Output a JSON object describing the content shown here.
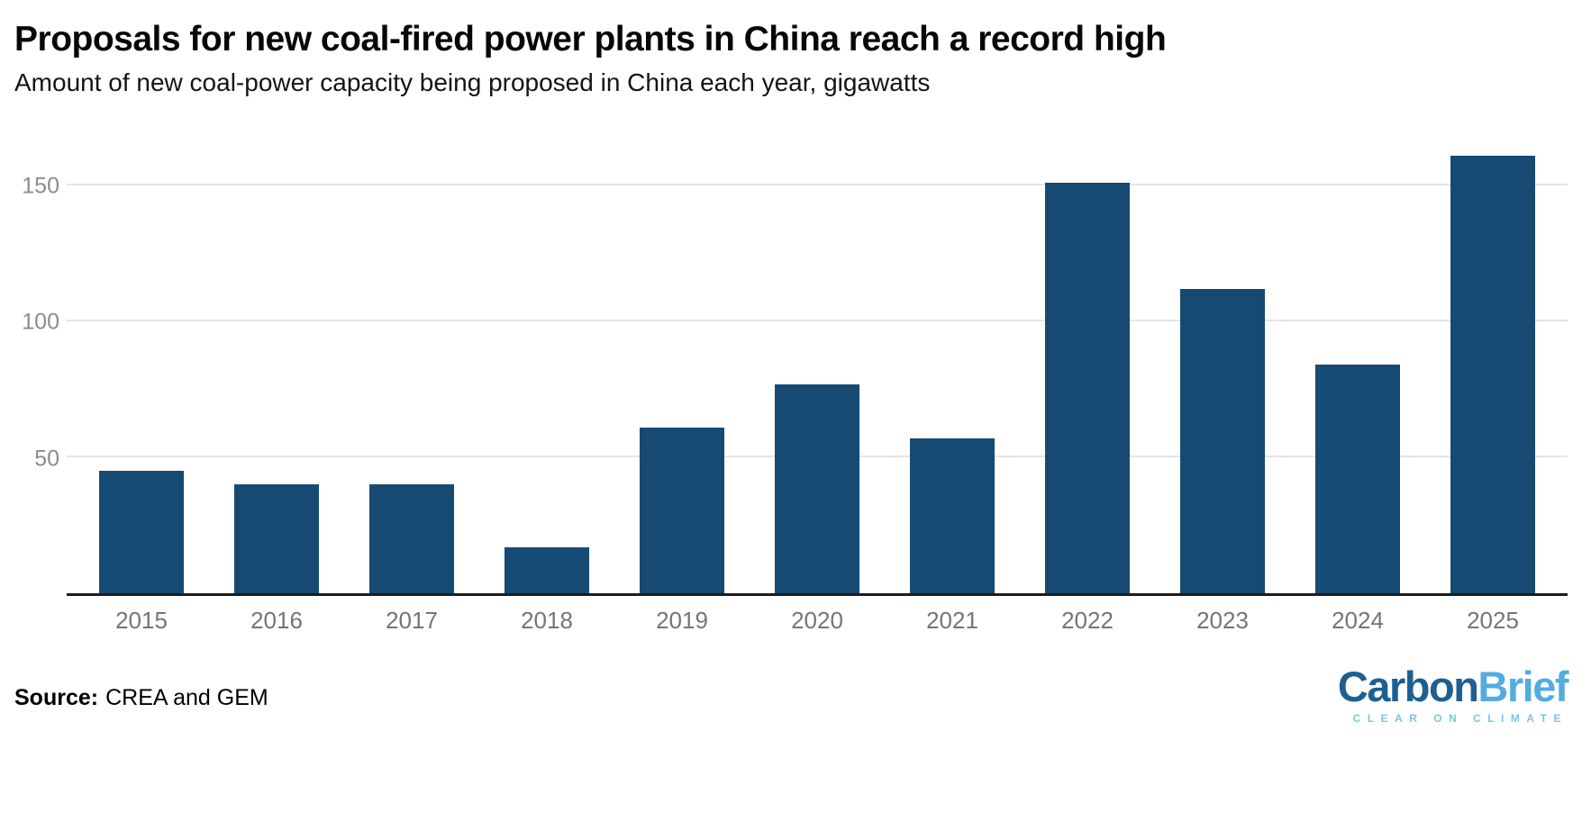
{
  "header": {
    "title": "Proposals for new coal-fired power plants in China reach a record high",
    "subtitle": "Amount of new coal-power capacity being proposed in China each year, gigawatts"
  },
  "chart_data": {
    "type": "bar",
    "categories": [
      "2015",
      "2016",
      "2017",
      "2018",
      "2019",
      "2020",
      "2021",
      "2022",
      "2023",
      "2024",
      "2025"
    ],
    "values": [
      45,
      40,
      40,
      17,
      61,
      77,
      57,
      151,
      112,
      84,
      161
    ],
    "title": "Proposals for new coal-fired power plants in China reach a record high",
    "xlabel": "",
    "ylabel": "gigawatts",
    "ylim": [
      0,
      172
    ],
    "yticks": [
      50,
      100,
      150
    ],
    "grid": true,
    "legend": "none",
    "bar_color": "#164a72"
  },
  "footer": {
    "source_label": "Source:",
    "source_text": "CREA and GEM",
    "logo": {
      "part1": "Carbon",
      "part2": "Brief",
      "tagline": "CLEAR ON CLIMATE"
    }
  },
  "colors": {
    "bar": "#164a72",
    "gridline": "#e5e5e5",
    "axis_line": "#1c1c1c",
    "tick_text": "#757575",
    "logo_carbon": "#1e5f93",
    "logo_brief": "#55abdf",
    "logo_tagline": "#7ec3e9"
  }
}
